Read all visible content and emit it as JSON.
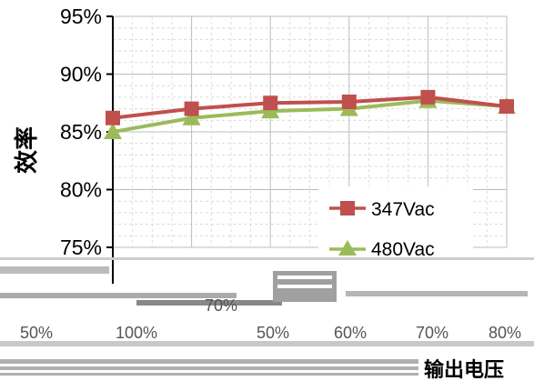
{
  "chart_data": {
    "type": "line",
    "ylabel": "效率",
    "xlabel": "输出电压",
    "yticks": [
      "95%",
      "90%",
      "85%",
      "80%",
      "75%"
    ],
    "ylim": [
      0.75,
      0.95
    ],
    "x_points": 6,
    "xticks": [
      "50%",
      "100%",
      "",
      "50%",
      "60%",
      "70%",
      "80%"
    ],
    "extra_label": "70%",
    "grid": true,
    "legend_position": "bottom-right",
    "series": [
      {
        "name": "347Vac",
        "color": "#c0504d",
        "marker": "square",
        "values": [
          0.862,
          0.87,
          0.875,
          0.876,
          0.88,
          0.872
        ]
      },
      {
        "name": "480Vac",
        "color": "#9bbb59",
        "marker": "triangle",
        "values": [
          0.85,
          0.862,
          0.868,
          0.87,
          0.877,
          0.872
        ]
      }
    ]
  }
}
